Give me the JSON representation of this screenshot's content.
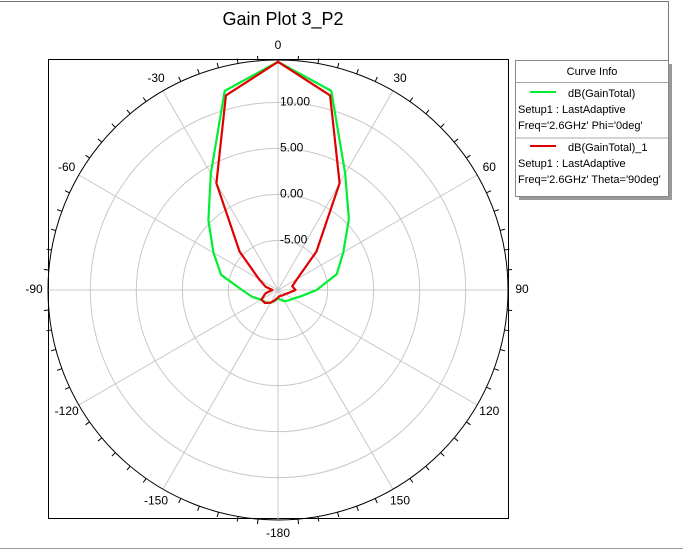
{
  "chart_data": {
    "type": "polar",
    "title": "Gain Plot 3_P2",
    "legend_title": "Curve Info",
    "x": [
      -180,
      -165,
      -150,
      -135,
      -120,
      -105,
      -90,
      -75,
      -60,
      -45,
      -30,
      -15,
      0,
      15,
      30,
      45,
      60,
      75,
      90,
      105,
      120,
      135,
      150,
      165,
      180
    ],
    "series": [
      {
        "name": "dB(GainTotal)",
        "setup": "Setup1 : LastAdaptive",
        "condition": "Freq='2.6GHz' Phi='0deg'",
        "color": "#00ee33",
        "values": [
          -9.5,
          -9.2,
          -8.8,
          -8.5,
          -8.3,
          -7.5,
          -6.5,
          -4.0,
          -2.3,
          0.3,
          4.2,
          12.0,
          14.4,
          12.0,
          4.2,
          0.5,
          -2.2,
          -3.8,
          -6.2,
          -7.8,
          -8.5,
          -8.8,
          -9.0,
          -9.3,
          -9.5
        ]
      },
      {
        "name": "dB(GainTotal)_1",
        "setup": "Setup1 : LastAdaptive",
        "condition": "Freq='2.6GHz' Theta='90deg'",
        "color": "#e00000",
        "values": [
          -9.6,
          -9.3,
          -8.8,
          -8.4,
          -8.3,
          -9.0,
          -9.8,
          -9.0,
          -8.0,
          -4.5,
          3.0,
          11.5,
          14.4,
          11.5,
          3.0,
          -4.5,
          -8.0,
          -8.8,
          -8.5,
          -9.2,
          -9.5,
          -9.6,
          -9.7,
          -9.7,
          -9.6
        ]
      }
    ],
    "rlim": [
      -10.4,
      14.6
    ],
    "rticks": [
      {
        "value": -5,
        "label": "-5.00"
      },
      {
        "value": 0,
        "label": "0.00"
      },
      {
        "value": 5,
        "label": "5.00"
      },
      {
        "value": 10,
        "label": "10.00"
      }
    ],
    "angle_ticks": [
      0,
      30,
      60,
      90,
      120,
      150,
      -180,
      -150,
      -120,
      -90,
      -60,
      -30
    ],
    "grid": true
  }
}
